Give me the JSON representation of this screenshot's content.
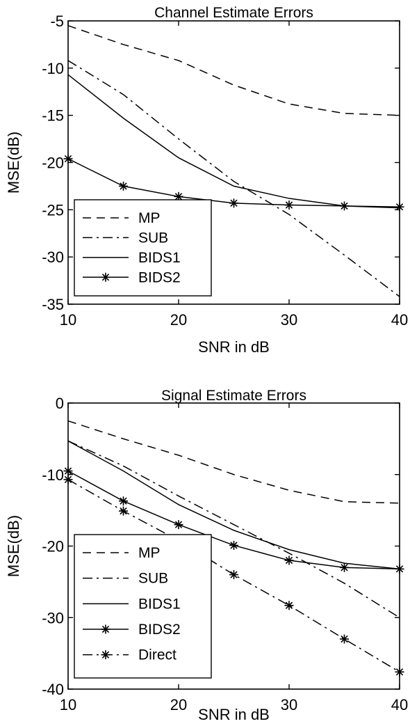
{
  "chart_data": [
    {
      "type": "line",
      "title": "Channel Estimate Errors",
      "xlabel": "SNR in dB",
      "ylabel": "MSE(dB)",
      "xlim": [
        10,
        40
      ],
      "ylim": [
        -35,
        -5
      ],
      "xticks": [
        10,
        20,
        30,
        40
      ],
      "yticks": [
        -5,
        -10,
        -15,
        -20,
        -25,
        -30,
        -35
      ],
      "grid": false,
      "legend_position": "bottom-left",
      "x": [
        10,
        15,
        20,
        25,
        30,
        35,
        40
      ],
      "series": [
        {
          "name": "MP",
          "style": "dashed",
          "marker": "none",
          "values": [
            -5.5,
            -7.5,
            -9.2,
            -11.8,
            -13.8,
            -14.8,
            -15.0
          ]
        },
        {
          "name": "SUB",
          "style": "dashdot",
          "marker": "none",
          "values": [
            -9.2,
            -12.8,
            -17.5,
            -22.0,
            -25.5,
            -29.8,
            -34.2
          ]
        },
        {
          "name": "BIDS1",
          "style": "solid",
          "marker": "none",
          "values": [
            -10.7,
            -15.3,
            -19.5,
            -22.5,
            -23.8,
            -24.6,
            -24.8
          ]
        },
        {
          "name": "BIDS2",
          "style": "solid",
          "marker": "star",
          "values": [
            -19.6,
            -22.5,
            -23.6,
            -24.3,
            -24.5,
            -24.6,
            -24.7
          ]
        }
      ]
    },
    {
      "type": "line",
      "title": "Signal Estimate Errors",
      "xlabel": "SNR in dB",
      "ylabel": "MSE(dB)",
      "xlim": [
        10,
        40
      ],
      "ylim": [
        -40,
        0
      ],
      "xticks": [
        10,
        20,
        30,
        40
      ],
      "yticks": [
        0,
        -10,
        -20,
        -30,
        -40
      ],
      "grid": false,
      "legend_position": "bottom-left",
      "x": [
        10,
        15,
        20,
        25,
        30,
        35,
        40
      ],
      "series": [
        {
          "name": "MP",
          "style": "dashed",
          "marker": "none",
          "values": [
            -2.5,
            -5.0,
            -7.3,
            -10.0,
            -12.2,
            -13.8,
            -14.0
          ]
        },
        {
          "name": "SUB",
          "style": "dashdot",
          "marker": "none",
          "values": [
            -5.3,
            -8.8,
            -13.0,
            -17.0,
            -21.0,
            -25.2,
            -30.0
          ]
        },
        {
          "name": "BIDS1",
          "style": "solid",
          "marker": "none",
          "values": [
            -5.3,
            -9.5,
            -14.2,
            -17.8,
            -20.5,
            -22.4,
            -23.2
          ]
        },
        {
          "name": "BIDS2",
          "style": "solid",
          "marker": "star",
          "values": [
            -9.5,
            -13.7,
            -17.0,
            -19.9,
            -22.0,
            -23.0,
            -23.2
          ]
        },
        {
          "name": "Direct",
          "style": "dashdot",
          "marker": "star",
          "values": [
            -10.7,
            -15.1,
            -19.2,
            -24.0,
            -28.3,
            -33.0,
            -37.6
          ]
        }
      ]
    }
  ]
}
